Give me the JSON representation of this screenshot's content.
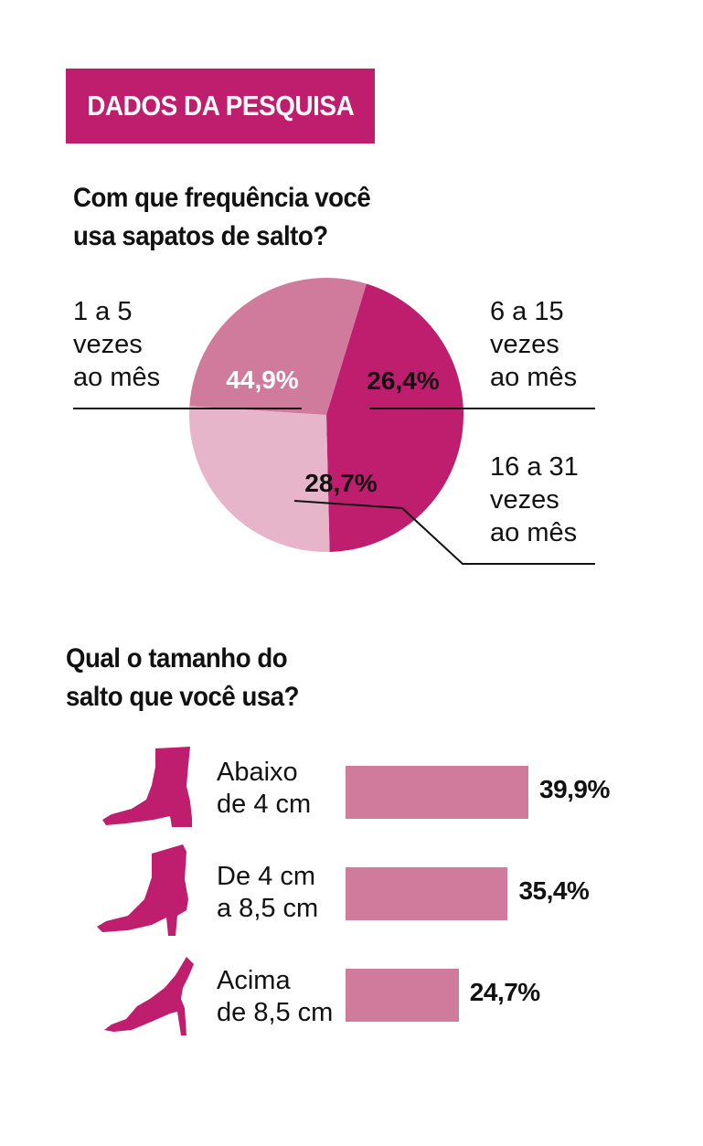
{
  "banner": {
    "title": "DADOS DA PESQUISA"
  },
  "colors": {
    "magenta": "#bf1e6e",
    "mid_pink": "#d17b9c",
    "light_pink": "#e6b5c9"
  },
  "chart_data": [
    {
      "type": "pie",
      "title": "Com que frequência você usa sapatos de salto?",
      "title_lines": [
        "Com que frequência você",
        "usa sapatos de salto?"
      ],
      "slices": [
        {
          "name": "1 a 5 vezes ao mês",
          "label_lines": [
            "1 a 5",
            "vezes",
            "ao mês"
          ],
          "value": 44.9,
          "value_label": "44,9%",
          "color": "#bf1e6e"
        },
        {
          "name": "6 a 15 vezes ao mês",
          "label_lines": [
            "6 a 15",
            "vezes",
            "ao mês"
          ],
          "value": 26.4,
          "value_label": "26,4%",
          "color": "#e6b5c9"
        },
        {
          "name": "16 a 31 vezes ao mês",
          "label_lines": [
            "16 a 31",
            "vezes",
            "ao mês"
          ],
          "value": 28.7,
          "value_label": "28,7%",
          "color": "#d17b9c"
        }
      ]
    },
    {
      "type": "bar",
      "orientation": "horizontal",
      "title": "Qual o tamanho do salto que você usa?",
      "title_lines": [
        "Qual o tamanho do",
        "salto que você usa?"
      ],
      "categories": [
        "Abaixo de 4 cm",
        "De 4 cm a 8,5 cm",
        "Acima de 8,5 cm"
      ],
      "category_lines": [
        [
          "Abaixo",
          "de 4 cm"
        ],
        [
          "De 4 cm",
          "a 8,5 cm"
        ],
        [
          "Acima",
          "de 8,5 cm"
        ]
      ],
      "values": [
        39.9,
        35.4,
        24.7
      ],
      "value_labels": [
        "39,9%",
        "35,4%",
        "24,7%"
      ],
      "icons": [
        "ankle-boot-icon",
        "high-boot-icon",
        "stiletto-icon"
      ]
    }
  ]
}
